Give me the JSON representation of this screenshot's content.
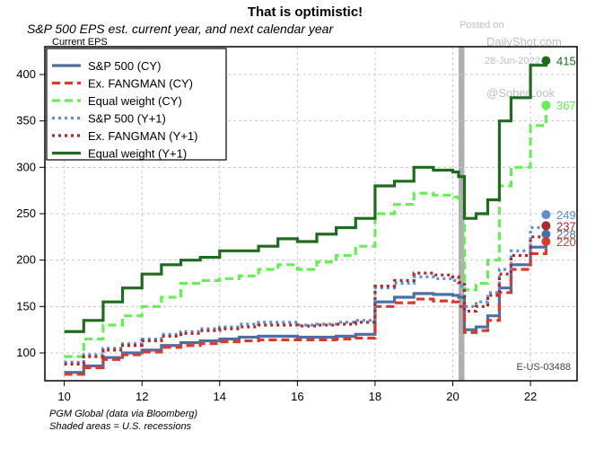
{
  "chart_data": {
    "type": "line",
    "title": "That is optimistic!",
    "subtitle": "S&P 500 EPS est. current year, and next calendar year",
    "ylabel": "Current EPS",
    "xlabel": "",
    "xlim": [
      9.5,
      23.2
    ],
    "ylim": [
      70,
      430
    ],
    "x_ticks": [
      10,
      12,
      14,
      16,
      18,
      20,
      22
    ],
    "y_ticks": [
      100,
      150,
      200,
      250,
      300,
      350,
      400
    ],
    "grid": true,
    "legend_position": "top-left",
    "recession": {
      "start": 20.15,
      "end": 20.3,
      "color": "#b0b0b0"
    },
    "series": [
      {
        "name": "S&P 500 (CY)",
        "color": "#4a6fa5",
        "dash": "solid",
        "x": [
          10,
          10.5,
          11,
          11.5,
          12,
          12.5,
          13,
          13.5,
          14,
          14.5,
          15,
          15.5,
          16,
          16.5,
          17,
          17.5,
          18,
          18.5,
          19,
          19.5,
          20,
          20.15,
          20.3,
          20.6,
          20.9,
          21.2,
          21.5,
          22,
          22.4
        ],
        "values": [
          79,
          86,
          95,
          100,
          103,
          108,
          111,
          113,
          115,
          117,
          118,
          118,
          117,
          117,
          118,
          120,
          155,
          160,
          164,
          163,
          162,
          160,
          125,
          128,
          140,
          170,
          195,
          214,
          228
        ]
      },
      {
        "name": "Ex. FANGMAN (CY)",
        "color": "#d93a2b",
        "dash": "dashed",
        "x": [
          10,
          10.5,
          11,
          11.5,
          12,
          12.5,
          13,
          13.5,
          14,
          14.5,
          15,
          15.5,
          16,
          16.5,
          17,
          17.5,
          18,
          18.5,
          19,
          19.5,
          20,
          20.15,
          20.3,
          20.6,
          20.9,
          21.2,
          21.5,
          22,
          22.4
        ],
        "values": [
          77,
          84,
          93,
          98,
          101,
          106,
          108,
          110,
          112,
          113,
          114,
          114,
          114,
          114,
          115,
          116,
          150,
          154,
          158,
          156,
          155,
          150,
          122,
          124,
          135,
          165,
          190,
          207,
          220
        ]
      },
      {
        "name": "Equal weight (CY)",
        "color": "#66ee55",
        "dash": "dashed",
        "x": [
          10,
          10.5,
          11,
          11.5,
          12,
          12.5,
          13,
          13.5,
          14,
          14.5,
          15,
          15.5,
          16,
          16.5,
          17,
          17.5,
          18,
          18.5,
          19,
          19.5,
          20,
          20.15,
          20.3,
          20.6,
          20.9,
          21.2,
          21.5,
          22,
          22.4
        ],
        "values": [
          96,
          115,
          130,
          140,
          150,
          160,
          175,
          178,
          180,
          183,
          190,
          195,
          190,
          198,
          205,
          215,
          250,
          260,
          272,
          270,
          268,
          262,
          168,
          175,
          200,
          280,
          300,
          345,
          367
        ]
      },
      {
        "name": "S&P 500 (Y+1)",
        "color": "#5b8fd0",
        "dash": "dotted",
        "x": [
          10,
          10.5,
          11,
          11.5,
          12,
          12.5,
          13,
          13.5,
          14,
          14.5,
          15,
          15.5,
          16,
          16.5,
          17,
          17.5,
          18,
          18.5,
          19,
          19.5,
          20,
          20.15,
          20.3,
          20.6,
          20.9,
          21.2,
          21.5,
          22,
          22.4
        ],
        "values": [
          90,
          98,
          105,
          110,
          115,
          120,
          123,
          126,
          128,
          131,
          133,
          133,
          130,
          131,
          133,
          135,
          170,
          175,
          182,
          180,
          178,
          172,
          150,
          155,
          165,
          190,
          210,
          235,
          249
        ]
      },
      {
        "name": "Ex. FANGMAN (Y+1)",
        "color": "#b02828",
        "dash": "dotted",
        "x": [
          10,
          10.5,
          11,
          11.5,
          12,
          12.5,
          13,
          13.5,
          14,
          14.5,
          15,
          15.5,
          16,
          16.5,
          17,
          17.5,
          18,
          18.5,
          19,
          19.5,
          20,
          20.15,
          20.3,
          20.6,
          20.9,
          21.2,
          21.5,
          22,
          22.4
        ],
        "values": [
          88,
          96,
          103,
          108,
          113,
          118,
          121,
          124,
          126,
          128,
          130,
          130,
          129,
          130,
          131,
          133,
          172,
          178,
          186,
          184,
          182,
          176,
          145,
          150,
          162,
          185,
          205,
          225,
          237
        ]
      },
      {
        "name": "Equal weight (Y+1)",
        "color": "#1e6b1e",
        "dash": "solid",
        "x": [
          10,
          10.5,
          11,
          11.5,
          12,
          12.5,
          13,
          13.5,
          14,
          14.5,
          15,
          15.5,
          16,
          16.5,
          17,
          17.5,
          18,
          18.5,
          19,
          19.5,
          20,
          20.15,
          20.3,
          20.6,
          20.9,
          21.2,
          21.5,
          22,
          22.4
        ],
        "values": [
          123,
          135,
          155,
          170,
          185,
          195,
          200,
          203,
          210,
          210,
          215,
          223,
          220,
          228,
          235,
          245,
          280,
          285,
          300,
          297,
          295,
          290,
          245,
          250,
          265,
          350,
          375,
          410,
          415
        ]
      }
    ],
    "end_labels": [
      {
        "text": "415",
        "color": "#1e6b1e",
        "y": 415,
        "series": 5
      },
      {
        "text": "367",
        "color": "#66ee55",
        "y": 367,
        "series": 2
      },
      {
        "text": "249",
        "color": "#5b8fd0",
        "y": 249,
        "series": 3
      },
      {
        "text": "237",
        "color": "#b02828",
        "y": 237,
        "series": 4
      },
      {
        "text": "228",
        "color": "#4a6fa5",
        "y": 228,
        "series": 0
      },
      {
        "text": "220",
        "color": "#d93a2b",
        "y": 220,
        "series": 1
      }
    ]
  },
  "watermark": {
    "line1": "Posted on",
    "line2": "DailyShot.com",
    "line3": "28-Jun-2022",
    "line4": "@SoberLook"
  },
  "chart_code": "E-US-03488",
  "footer": {
    "source": "PGM Global (data via Bloomberg)",
    "note": "Shaded areas = U.S. recessions"
  }
}
